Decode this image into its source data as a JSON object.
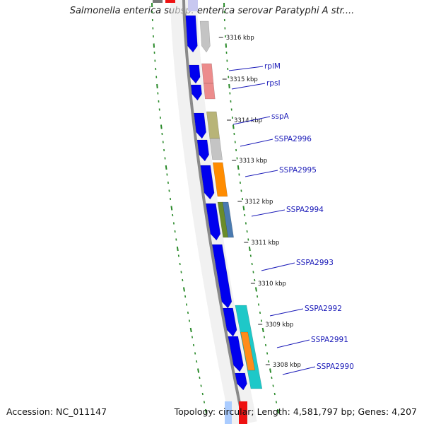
{
  "title": "Salmonella enterica subsp. enterica serovar Paratyphi A str....",
  "footer": {
    "accession": "Accession: NC_011147",
    "stats": "Topology: circular; Length: 4,581,797 bp; Genes: 4,207"
  },
  "kbp_ticks": [
    "3316 kbp",
    "3315 kbp",
    "3314 kbp",
    "3313 kbp",
    "3312 kbp",
    "3311 kbp",
    "3310 kbp",
    "3309 kbp",
    "3308 kbp"
  ],
  "gene_labels": [
    "rplM",
    "rpsI",
    "sspA",
    "SSPA2996",
    "SSPA2995",
    "SSPA2994",
    "SSPA2993",
    "SSPA2992",
    "SSPA2991",
    "SSPA2990"
  ],
  "colors": {
    "cds_strand": "#0000ee",
    "backbone": "#8a8a8a",
    "dotted_track": "#2a8a2a",
    "label_text": "#1a1ab8",
    "gene_rplM": "#ec8c8c",
    "gene_rpsI": "#ec8c8c",
    "gene_sspA": "#b8b478",
    "gene_SSPA2996": "#c4c4c4",
    "gene_SSPA2995": "#ff8c00",
    "gene_SSPA2994_a": "#6a8c2a",
    "gene_SSPA2994_b": "#4a7ab0",
    "gene_SSPA2992": "#1ec8c8",
    "gene_SSPA2991": "#ff8c1a",
    "gene_SSPA2990": "#1ec8c8"
  }
}
